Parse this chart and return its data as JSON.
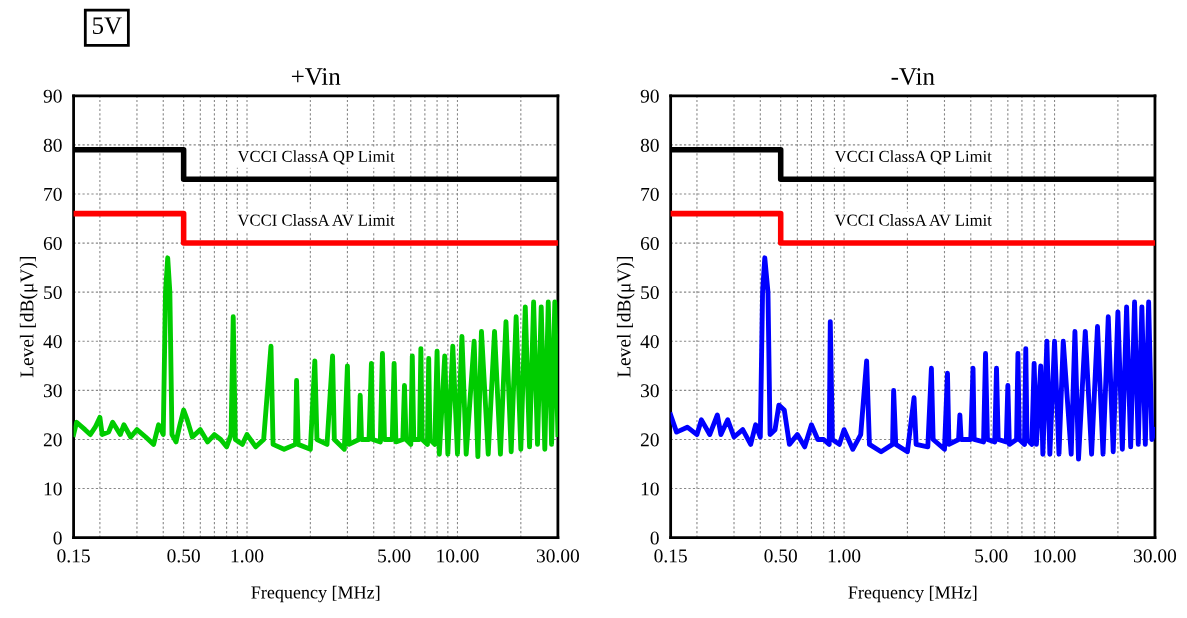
{
  "chart_data": [
    {
      "type": "line",
      "title": "+Vin",
      "xlabel": "Frequency [MHz]",
      "ylabel": "Level [dB(μV)]",
      "log": "x",
      "grid": true,
      "legend": false,
      "marker": "none",
      "line_style": "solid",
      "annotations": [
        "5V"
      ],
      "xlim": [
        0.15,
        30
      ],
      "ylim": [
        0,
        90
      ],
      "yticks": [
        0,
        10,
        20,
        30,
        40,
        50,
        60,
        70,
        80,
        90
      ],
      "xticks": [
        {
          "value": 0.15,
          "label": "0.15"
        },
        {
          "value": 0.2,
          "label": null
        },
        {
          "value": 0.3,
          "label": null
        },
        {
          "value": 0.4,
          "label": null
        },
        {
          "value": 0.5,
          "label": "0.50"
        },
        {
          "value": 0.6,
          "label": null
        },
        {
          "value": 0.7,
          "label": null
        },
        {
          "value": 0.8,
          "label": null
        },
        {
          "value": 0.9,
          "label": null
        },
        {
          "value": 1,
          "label": "1.00"
        },
        {
          "value": 2,
          "label": null
        },
        {
          "value": 3,
          "label": null
        },
        {
          "value": 4,
          "label": null
        },
        {
          "value": 5,
          "label": "5.00"
        },
        {
          "value": 6,
          "label": null
        },
        {
          "value": 7,
          "label": null
        },
        {
          "value": 8,
          "label": null
        },
        {
          "value": 9,
          "label": null
        },
        {
          "value": 10,
          "label": "10.00"
        },
        {
          "value": 20,
          "label": null
        },
        {
          "value": 30,
          "label": "30.00"
        }
      ],
      "series": [
        {
          "color": "#00cc00",
          "x": [
            0.15,
            0.155,
            0.17,
            0.18,
            0.19,
            0.2,
            0.205,
            0.22,
            0.23,
            0.25,
            0.26,
            0.28,
            0.3,
            0.33,
            0.36,
            0.38,
            0.4,
            0.41,
            0.42,
            0.43,
            0.44,
            0.46,
            0.48,
            0.5,
            0.52,
            0.55,
            0.6,
            0.65,
            0.7,
            0.75,
            0.8,
            0.84,
            0.86,
            0.88,
            0.95,
            1.0,
            1.1,
            1.2,
            1.3,
            1.33,
            1.5,
            1.7,
            1.72,
            1.75,
            2.0,
            2.1,
            2.15,
            2.4,
            2.55,
            2.6,
            2.9,
            3.0,
            3.05,
            3.4,
            3.45,
            3.5,
            3.8,
            3.9,
            3.95,
            4.3,
            4.4,
            4.5,
            4.9,
            5.0,
            5.1,
            5.5,
            5.6,
            5.7,
            6.0,
            6.1,
            6.2,
            6.6,
            6.7,
            6.8,
            7.2,
            7.3,
            7.4,
            7.8,
            8.0,
            8.2,
            8.7,
            9.0,
            9.5,
            10,
            10.5,
            11,
            12,
            12.5,
            13,
            14,
            15,
            16,
            17,
            18,
            19,
            20,
            21,
            22,
            23,
            24,
            25,
            26,
            27,
            28,
            29,
            30
          ],
          "values": [
            21,
            23.5,
            22,
            21,
            22.5,
            24.5,
            21,
            21.5,
            23.5,
            21,
            23,
            20.5,
            22,
            20.5,
            19,
            23,
            21,
            50,
            57,
            50,
            21,
            19.5,
            23,
            26,
            24,
            20.5,
            22,
            19.5,
            21,
            20,
            18.5,
            21,
            45,
            20,
            19,
            21,
            18.5,
            20,
            39,
            19,
            18,
            19,
            32,
            19,
            18,
            36,
            20,
            19,
            37,
            20,
            18,
            35,
            19,
            20,
            29,
            20,
            20,
            35.5,
            20,
            19.5,
            37.5,
            20,
            20,
            35.5,
            19.5,
            20,
            31,
            20,
            19,
            37,
            20,
            20,
            38.5,
            20,
            19,
            36.5,
            20,
            19,
            38,
            17,
            37,
            17,
            39,
            17,
            41,
            17,
            40,
            16.5,
            42,
            17,
            42,
            17,
            44,
            17.5,
            45,
            18,
            47,
            18.5,
            48,
            19,
            47,
            18,
            48,
            19,
            48,
            21
          ]
        },
        {
          "name": "VCCI ClassA QP Limit",
          "color": "#000000",
          "x": [
            0.15,
            0.5,
            0.5,
            30
          ],
          "values": [
            79,
            79,
            73,
            73
          ]
        },
        {
          "name": "VCCI ClassA AV Limit",
          "color": "#ff0000",
          "x": [
            0.15,
            0.5,
            0.5,
            30
          ],
          "values": [
            66,
            66,
            60,
            60
          ]
        }
      ]
    },
    {
      "type": "line",
      "title": "-Vin",
      "xlabel": "Frequency [MHz]",
      "ylabel": "Level [dB(μV)]",
      "log": "x",
      "grid": true,
      "legend": false,
      "marker": "none",
      "line_style": "solid",
      "xlim": [
        0.15,
        30
      ],
      "ylim": [
        0,
        90
      ],
      "yticks": [
        0,
        10,
        20,
        30,
        40,
        50,
        60,
        70,
        80,
        90
      ],
      "xticks": [
        {
          "value": 0.15,
          "label": "0.15"
        },
        {
          "value": 0.2,
          "label": null
        },
        {
          "value": 0.3,
          "label": null
        },
        {
          "value": 0.4,
          "label": null
        },
        {
          "value": 0.5,
          "label": "0.50"
        },
        {
          "value": 0.6,
          "label": null
        },
        {
          "value": 0.7,
          "label": null
        },
        {
          "value": 0.8,
          "label": null
        },
        {
          "value": 0.9,
          "label": null
        },
        {
          "value": 1,
          "label": "1.00"
        },
        {
          "value": 2,
          "label": null
        },
        {
          "value": 3,
          "label": null
        },
        {
          "value": 4,
          "label": null
        },
        {
          "value": 5,
          "label": "5.00"
        },
        {
          "value": 6,
          "label": null
        },
        {
          "value": 7,
          "label": null
        },
        {
          "value": 8,
          "label": null
        },
        {
          "value": 9,
          "label": null
        },
        {
          "value": 10,
          "label": "10.00"
        },
        {
          "value": 20,
          "label": null
        },
        {
          "value": 30,
          "label": "30.00"
        }
      ],
      "series": [
        {
          "color": "#0000ff",
          "x": [
            0.15,
            0.16,
            0.18,
            0.2,
            0.21,
            0.23,
            0.25,
            0.26,
            0.28,
            0.3,
            0.33,
            0.36,
            0.38,
            0.4,
            0.41,
            0.42,
            0.435,
            0.445,
            0.47,
            0.49,
            0.52,
            0.55,
            0.6,
            0.65,
            0.7,
            0.75,
            0.8,
            0.85,
            0.86,
            0.88,
            0.95,
            1.0,
            1.1,
            1.2,
            1.28,
            1.32,
            1.5,
            1.7,
            1.72,
            1.76,
            2.0,
            2.15,
            2.2,
            2.5,
            2.6,
            2.65,
            3.0,
            3.1,
            3.15,
            3.5,
            3.55,
            3.6,
            4.0,
            4.1,
            4.15,
            4.6,
            4.7,
            4.8,
            5.2,
            5.3,
            5.4,
            5.9,
            6.0,
            6.1,
            6.6,
            6.7,
            6.8,
            7.2,
            7.3,
            7.4,
            7.8,
            8.0,
            8.2,
            8.6,
            8.8,
            9.2,
            9.5,
            10,
            10.5,
            11,
            12,
            12.5,
            13,
            14,
            15,
            16,
            17,
            18,
            19,
            20,
            21,
            22,
            23,
            24,
            25,
            26,
            27,
            28,
            29,
            30
          ],
          "values": [
            25,
            21.5,
            22.5,
            21,
            24,
            21,
            25,
            21,
            24,
            20.5,
            22,
            19,
            23,
            20.5,
            50,
            57,
            50,
            21,
            22,
            27,
            26,
            19,
            21,
            18.5,
            23,
            20,
            20,
            19,
            44,
            20,
            19,
            22,
            18,
            21,
            36,
            19,
            17.5,
            19,
            30,
            19,
            17.5,
            28.5,
            19,
            18.5,
            34.5,
            20,
            18,
            33.5,
            19,
            20,
            25,
            20,
            20,
            34.5,
            20,
            19.5,
            37.5,
            20,
            19.5,
            34.5,
            20,
            19.5,
            31,
            19,
            20,
            37.5,
            20,
            19,
            38.5,
            20,
            19,
            35.5,
            19,
            35,
            17,
            40,
            17,
            40,
            17,
            40,
            17,
            42,
            16,
            42,
            17,
            43,
            17,
            45,
            17.5,
            46,
            18,
            47,
            18.5,
            48,
            19,
            47,
            19,
            48,
            20,
            22
          ]
        },
        {
          "name": "VCCI ClassA QP Limit",
          "color": "#000000",
          "x": [
            0.15,
            0.5,
            0.5,
            30
          ],
          "values": [
            79,
            79,
            73,
            73
          ]
        },
        {
          "name": "VCCI ClassA AV Limit",
          "color": "#ff0000",
          "x": [
            0.15,
            0.5,
            0.5,
            30
          ],
          "values": [
            66,
            66,
            60,
            60
          ]
        }
      ]
    }
  ]
}
